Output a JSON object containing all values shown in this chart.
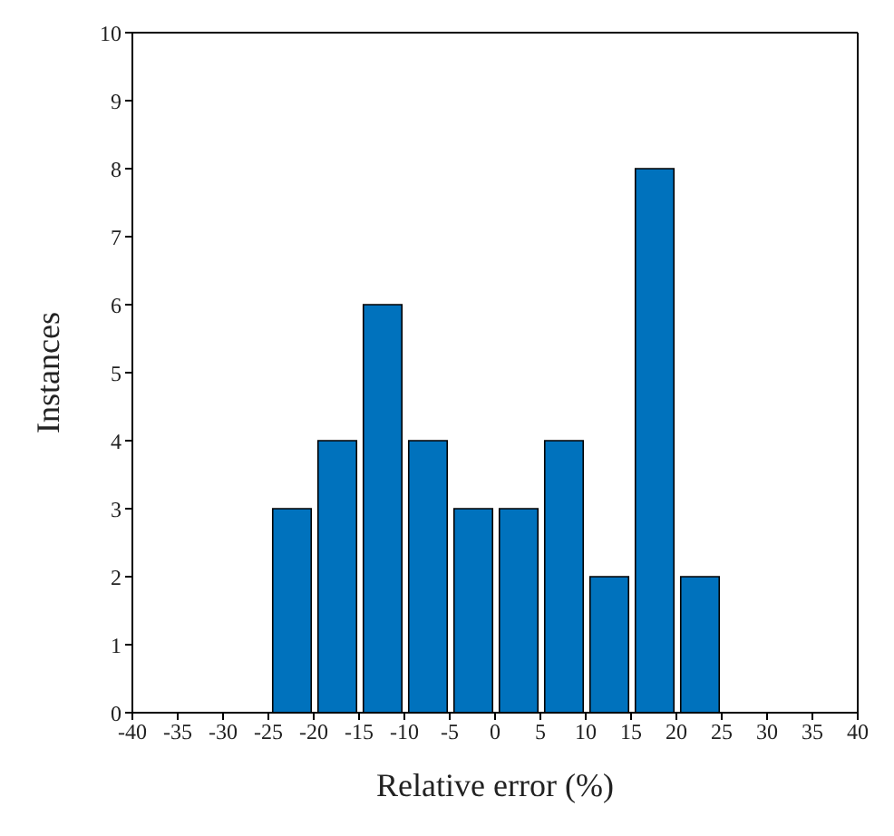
{
  "chart_data": {
    "type": "histogram",
    "xlabel": "Relative error (%)",
    "ylabel": "Instances",
    "bins": [
      -25,
      -20,
      -15,
      -10,
      -5,
      0,
      5,
      10,
      15,
      20,
      25
    ],
    "values": [
      3,
      4,
      6,
      4,
      3,
      3,
      4,
      2,
      8,
      2
    ],
    "color": "#0072bd",
    "xlim": [
      -40,
      40
    ],
    "xticks": [
      -40,
      -35,
      -30,
      -25,
      -20,
      -15,
      -10,
      -5,
      0,
      5,
      10,
      15,
      20,
      25,
      30,
      35,
      40
    ],
    "ylim": [
      0,
      10
    ],
    "yticks": [
      0,
      1,
      2,
      3,
      4,
      5,
      6,
      7,
      8,
      9,
      10
    ]
  }
}
